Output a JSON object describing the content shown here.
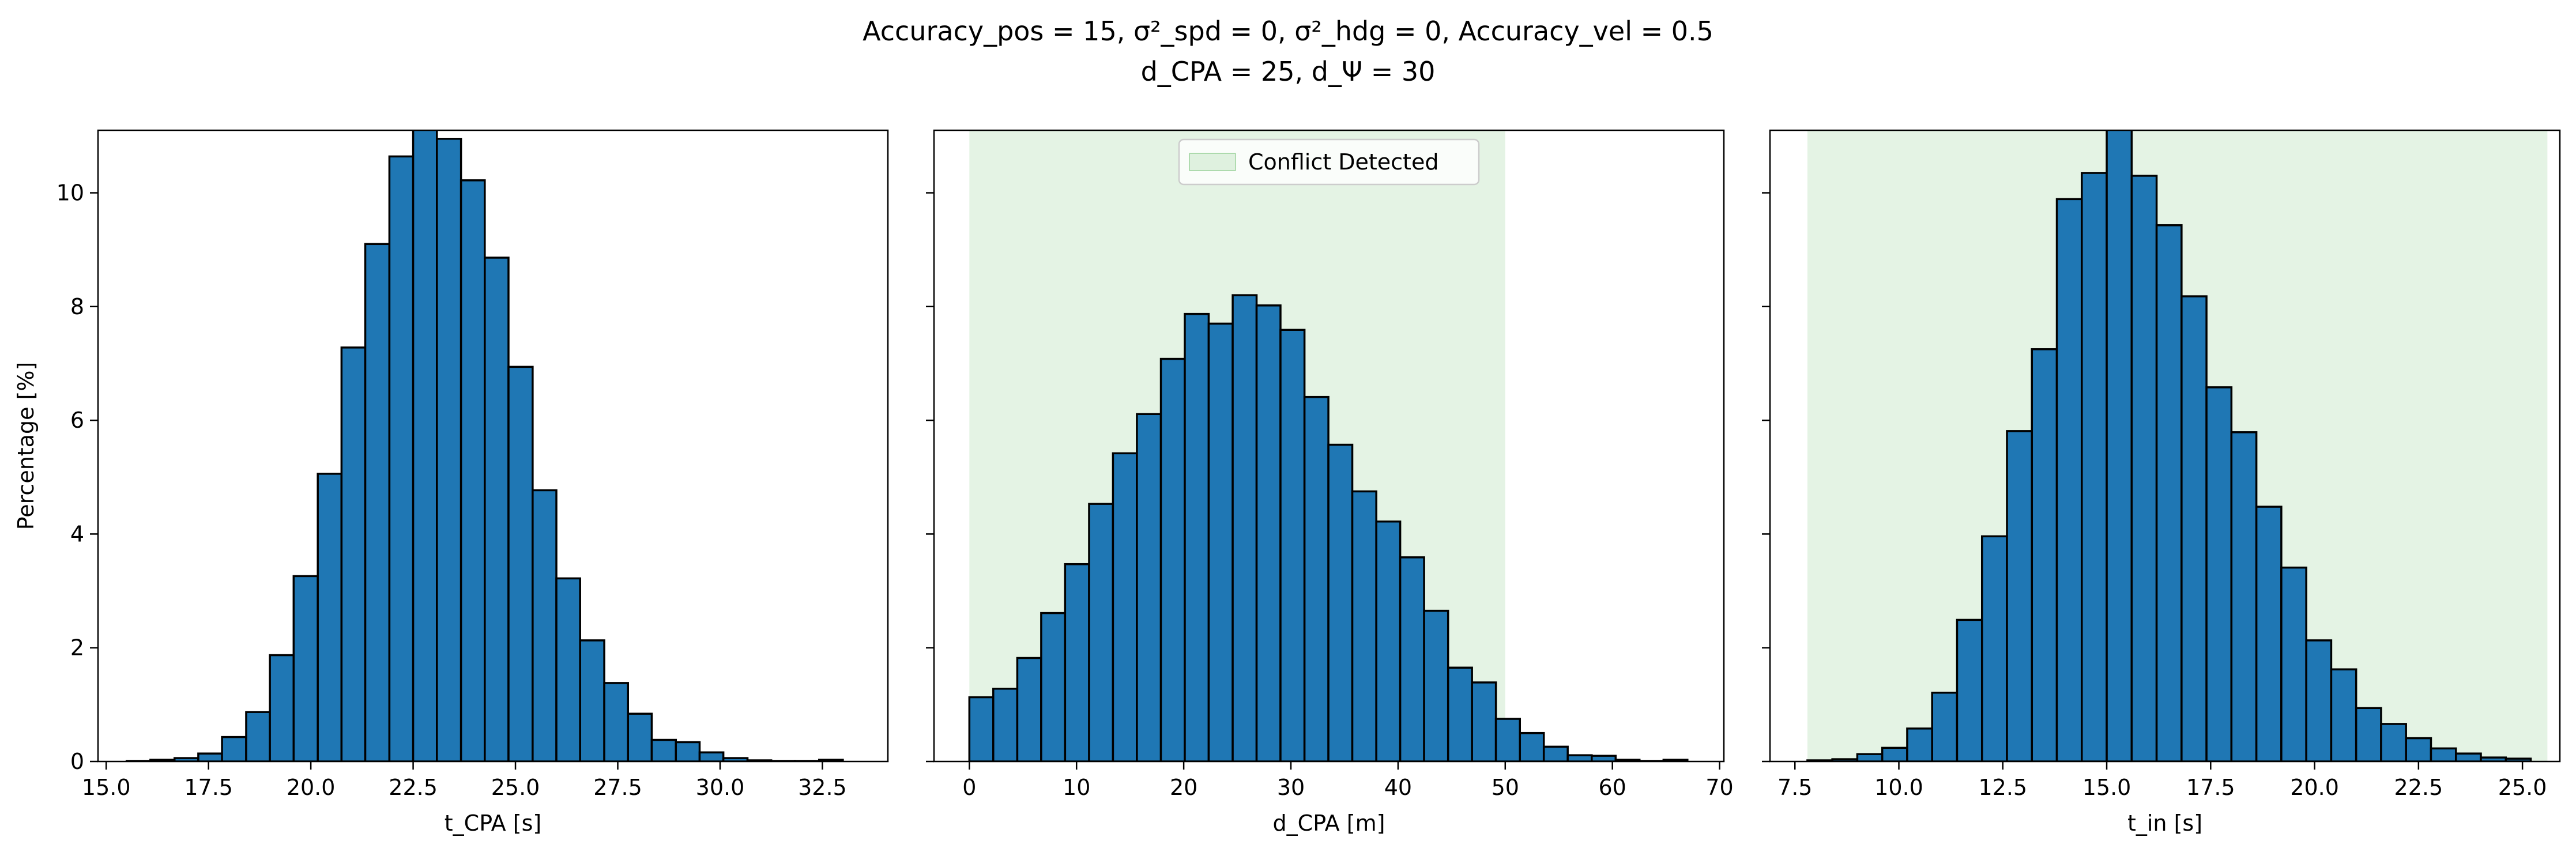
{
  "figure": {
    "title_line1": "Accuracy_pos = 15, σ²_spd = 0, σ²_hdg = 0, Accuracy_vel = 0.5",
    "title_line2": "d_CPA = 25, d_Ψ = 30"
  },
  "colors": {
    "bar": "#1f77b4",
    "shade": "#2ca02c"
  },
  "chart_data": [
    {
      "type": "bar",
      "xlabel": "t_CPA [s]",
      "ylabel": "Percentage [%]",
      "xlim": [
        14.8,
        34.1
      ],
      "ylim": [
        0,
        11.1
      ],
      "xticks": [
        15.0,
        17.5,
        20.0,
        22.5,
        25.0,
        27.5,
        30.0,
        32.5
      ],
      "xtick_labels": [
        "15.0",
        "17.5",
        "20.0",
        "22.5",
        "25.0",
        "27.5",
        "30.0",
        "32.5"
      ],
      "yticks": [
        0,
        2,
        4,
        6,
        8,
        10
      ],
      "ytick_labels": [
        "0",
        "2",
        "4",
        "6",
        "8",
        "10"
      ],
      "bin_edges": [
        15.5,
        16.08,
        16.67,
        17.25,
        17.83,
        18.42,
        19.0,
        19.58,
        20.17,
        20.75,
        21.33,
        21.92,
        22.5,
        23.08,
        23.67,
        24.25,
        24.83,
        25.42,
        26.0,
        26.58,
        27.17,
        27.75,
        28.33,
        28.92,
        29.5,
        30.08,
        30.67,
        31.25,
        31.83,
        32.42,
        33.0
      ],
      "values": [
        0.01,
        0.03,
        0.06,
        0.14,
        0.43,
        0.87,
        1.87,
        3.26,
        5.06,
        7.28,
        9.1,
        10.64,
        11.15,
        10.95,
        10.22,
        8.86,
        6.94,
        4.77,
        3.22,
        2.13,
        1.38,
        0.84,
        0.38,
        0.34,
        0.16,
        0.06,
        0.02,
        0.01,
        0.01,
        0.03
      ],
      "shade": null,
      "show_ytick_labels": true,
      "legend": null
    },
    {
      "type": "bar",
      "xlabel": "d_CPA [m]",
      "ylabel": "",
      "xlim": [
        -3.3,
        70.4
      ],
      "ylim": [
        0,
        11.1
      ],
      "xticks": [
        0,
        10,
        20,
        30,
        40,
        50,
        60,
        70
      ],
      "xtick_labels": [
        "0",
        "10",
        "20",
        "30",
        "40",
        "50",
        "60",
        "70"
      ],
      "yticks": [
        0,
        2,
        4,
        6,
        8,
        10
      ],
      "ytick_labels": [
        "0",
        "2",
        "4",
        "6",
        "8",
        "10"
      ],
      "bin_edges": [
        0.0,
        2.23,
        4.47,
        6.7,
        8.93,
        11.17,
        13.4,
        15.63,
        17.87,
        20.1,
        22.33,
        24.57,
        26.8,
        29.03,
        31.27,
        33.5,
        35.73,
        37.97,
        40.2,
        42.43,
        44.67,
        46.9,
        49.13,
        51.37,
        53.6,
        55.83,
        58.07,
        60.3,
        62.53,
        64.77,
        67.0
      ],
      "values": [
        1.13,
        1.28,
        1.82,
        2.61,
        3.47,
        4.53,
        5.42,
        6.11,
        7.08,
        7.87,
        7.7,
        8.2,
        8.02,
        7.59,
        6.41,
        5.57,
        4.75,
        4.22,
        3.59,
        2.65,
        1.65,
        1.39,
        0.75,
        0.5,
        0.26,
        0.11,
        0.1,
        0.03,
        0.01,
        0.03
      ],
      "shade": [
        0,
        50
      ],
      "show_ytick_labels": false,
      "legend": {
        "label": "Conflict Detected",
        "loc": "upper center"
      }
    },
    {
      "type": "bar",
      "xlabel": "t_in [s]",
      "ylabel": "",
      "xlim": [
        6.9,
        25.9
      ],
      "ylim": [
        0,
        11.1
      ],
      "xticks": [
        7.5,
        10.0,
        12.5,
        15.0,
        17.5,
        20.0,
        22.5,
        25.0
      ],
      "xtick_labels": [
        "7.5",
        "10.0",
        "12.5",
        "15.0",
        "17.5",
        "20.0",
        "22.5",
        "25.0"
      ],
      "yticks": [
        0,
        2,
        4,
        6,
        8,
        10
      ],
      "ytick_labels": [
        "0",
        "2",
        "4",
        "6",
        "8",
        "10"
      ],
      "bin_edges": [
        7.8,
        8.4,
        9.0,
        9.6,
        10.2,
        10.8,
        11.4,
        12.0,
        12.6,
        13.2,
        13.8,
        14.4,
        15.0,
        15.6,
        16.2,
        16.8,
        17.4,
        18.0,
        18.6,
        19.2,
        19.8,
        20.4,
        21.0,
        21.6,
        22.2,
        22.8,
        23.4,
        24.0,
        24.6,
        25.2
      ],
      "values": [
        0.02,
        0.04,
        0.13,
        0.24,
        0.58,
        1.21,
        2.49,
        3.96,
        5.81,
        7.25,
        9.89,
        10.35,
        11.13,
        10.3,
        9.43,
        8.18,
        6.58,
        5.79,
        4.48,
        3.41,
        2.13,
        1.62,
        0.94,
        0.66,
        0.41,
        0.23,
        0.14,
        0.07,
        0.05
      ],
      "shade": [
        7.8,
        25.6
      ],
      "show_ytick_labels": false,
      "legend": null
    }
  ]
}
